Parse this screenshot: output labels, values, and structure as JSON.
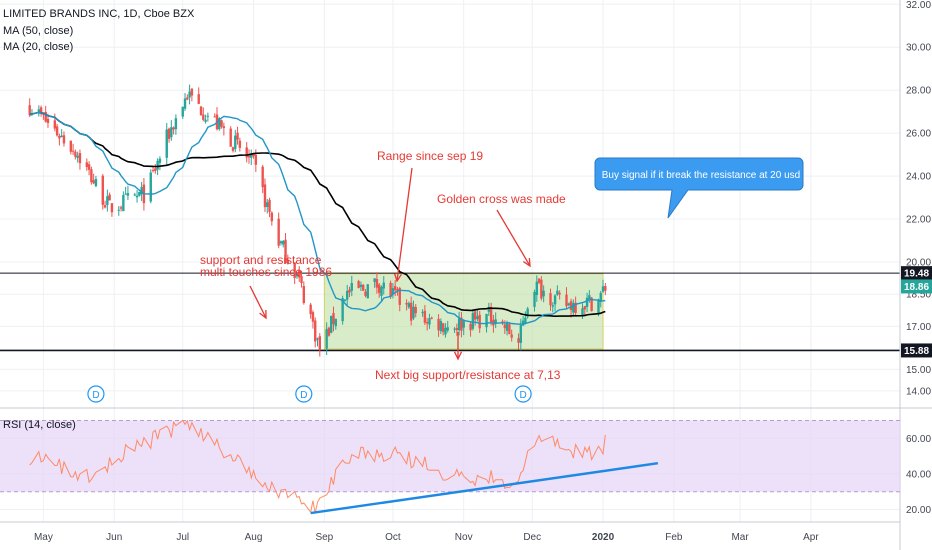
{
  "header": {
    "symbol": "LIMITED BRANDS INC, 1D, Cboe BZX",
    "ma50": "MA (50, close)",
    "ma20": "MA (20, close)",
    "rsi": "RSI (14, close)"
  },
  "colors": {
    "up": "#26a69a",
    "down": "#ef5350",
    "ma50": "#000000",
    "ma20": "#2196c8",
    "range_box": "#b9dc9e",
    "rsi_line": "#ff8a65",
    "rsi_band": "#e7d6f7",
    "trendline": "#1e88e5",
    "annotation": "#e53935"
  },
  "chart_data": [
    {
      "type": "candlestick",
      "title": "LIMITED BRANDS INC, 1D, Cboe BZX",
      "x_ticks": [
        "May",
        "Jun",
        "Jul",
        "Aug",
        "Sep",
        "Oct",
        "Nov",
        "Dec",
        "2020",
        "Feb",
        "Mar",
        "Apr"
      ],
      "y_ticks": [
        14.0,
        15.0,
        17.0,
        18.5,
        20.0,
        22.0,
        24.0,
        26.0,
        28.0,
        30.0,
        32.0
      ],
      "y_tick_labels": [
        "14.00",
        "15.00",
        "17.00",
        "18.50",
        "20.00",
        "22.00",
        "24.00",
        "26.00",
        "28.00",
        "30.00",
        "32.00"
      ],
      "ylim": [
        13.2,
        32.2
      ],
      "series": [
        {
          "name": "MA (50, close)"
        },
        {
          "name": "MA (20, close)"
        }
      ],
      "price_keypoints": [
        {
          "date": "2019-04-25",
          "close": 27.3
        },
        {
          "date": "2019-05-15",
          "close": 25.2
        },
        {
          "date": "2019-05-30",
          "close": 22.5
        },
        {
          "date": "2019-06-15",
          "close": 23.2
        },
        {
          "date": "2019-06-25",
          "close": 26.0
        },
        {
          "date": "2019-07-03",
          "close": 27.8
        },
        {
          "date": "2019-07-20",
          "close": 26.0
        },
        {
          "date": "2019-08-01",
          "close": 24.5
        },
        {
          "date": "2019-08-12",
          "close": 21.0
        },
        {
          "date": "2019-08-20",
          "close": 19.4
        },
        {
          "date": "2019-08-26",
          "close": 17.5
        },
        {
          "date": "2019-08-30",
          "close": 15.9
        },
        {
          "date": "2019-09-10",
          "close": 18.5
        },
        {
          "date": "2019-09-25",
          "close": 19.0
        },
        {
          "date": "2019-10-10",
          "close": 17.6
        },
        {
          "date": "2019-10-25",
          "close": 17.0
        },
        {
          "date": "2019-11-15",
          "close": 17.5
        },
        {
          "date": "2019-11-25",
          "close": 16.2
        },
        {
          "date": "2019-12-01",
          "close": 19.0
        },
        {
          "date": "2019-12-15",
          "close": 18.0
        },
        {
          "date": "2019-12-30",
          "close": 18.2
        },
        {
          "date": "2020-01-02",
          "close": 18.86
        }
      ],
      "price_tags": [
        {
          "value": 19.48,
          "label": "19.48",
          "color": "#131722"
        },
        {
          "value": 18.86,
          "label": "18.86",
          "color": "#26a69a"
        },
        {
          "value": 15.88,
          "label": "15.88",
          "color": "#131722"
        }
      ],
      "horizontal_lines": [
        19.48,
        15.88
      ],
      "range_box": {
        "x_start": "2019-09-01",
        "x_end": "2020-01-01",
        "y_low": 15.95,
        "y_high": 19.45
      },
      "dividend_markers": [
        {
          "date": "2019-05-24",
          "label": "D"
        },
        {
          "date": "2019-08-23",
          "label": "D"
        },
        {
          "date": "2019-11-27",
          "label": "D"
        }
      ],
      "annotations": [
        {
          "text": "Range since sep 19"
        },
        {
          "text": "Golden cross was made"
        },
        {
          "text": "support and resistance"
        },
        {
          "text": "multi touches since 1986"
        },
        {
          "text": "Next big support/resistance at 7,13"
        },
        {
          "text": "Buy signal if it break the resistance at 20 usd"
        }
      ]
    },
    {
      "type": "line",
      "title": "RSI (14, close)",
      "y_ticks": [
        20.0,
        40.0,
        60.0
      ],
      "y_tick_labels": [
        "20.00",
        "40.00",
        "60.00"
      ],
      "ylim": [
        13,
        77
      ],
      "band": [
        30,
        70
      ],
      "rsi_keypoints": [
        {
          "date": "2019-04-25",
          "value": 50
        },
        {
          "date": "2019-05-20",
          "value": 38
        },
        {
          "date": "2019-06-10",
          "value": 55
        },
        {
          "date": "2019-07-03",
          "value": 68
        },
        {
          "date": "2019-07-25",
          "value": 48
        },
        {
          "date": "2019-08-12",
          "value": 30
        },
        {
          "date": "2019-08-28",
          "value": 20
        },
        {
          "date": "2019-09-10",
          "value": 50
        },
        {
          "date": "2019-10-01",
          "value": 52
        },
        {
          "date": "2019-10-25",
          "value": 40
        },
        {
          "date": "2019-11-25",
          "value": 36
        },
        {
          "date": "2019-12-01",
          "value": 60
        },
        {
          "date": "2019-12-25",
          "value": 50
        },
        {
          "date": "2020-01-02",
          "value": 57
        }
      ],
      "trendline": {
        "x_start": "2019-08-26",
        "y_start": 18,
        "x_end": "2020-01-25",
        "y_end": 46
      }
    }
  ]
}
